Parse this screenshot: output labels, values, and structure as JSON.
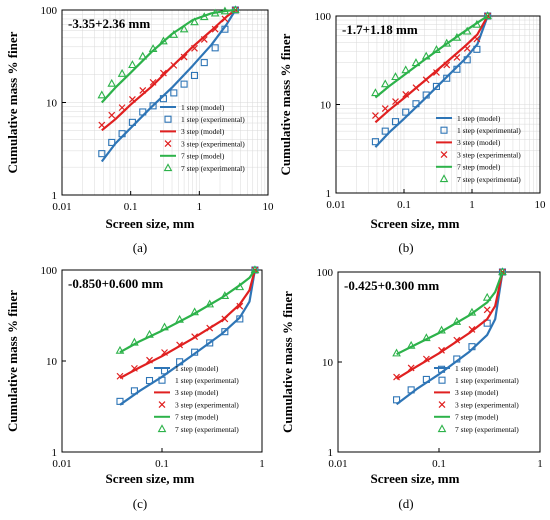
{
  "figure": {
    "panel_labels": [
      "(a)",
      "(b)",
      "(c)",
      "(d)"
    ],
    "colors": {
      "step1": "#2e75b6",
      "step3": "#e02020",
      "step7": "#2db24a",
      "axis": "#000000",
      "grid": "#d9d9d9"
    }
  },
  "chart_data": [
    {
      "type": "line",
      "title": "-3.35+2.36 mm",
      "xlabel": "Screen size, mm",
      "ylabel": "Cumulative mass % finer",
      "xscale": "log",
      "yscale": "log",
      "xlim": [
        0.01,
        10
      ],
      "ylim": [
        1,
        100
      ],
      "xticks": [
        "0.01",
        "0.1",
        "1",
        "10"
      ],
      "yticks": [
        "1",
        "10",
        "100"
      ],
      "grid": true,
      "legend": [
        "1 step (model)",
        "1 step (experimental)",
        "3 step (model)",
        "3 step (experimental)",
        "7 step (model)",
        "7 step (experimental)"
      ],
      "series": [
        {
          "name": "1 step (model)",
          "kind": "line",
          "color": "#2e75b6",
          "x": [
            0.038,
            0.06,
            0.1,
            0.2,
            0.4,
            0.8,
            1.5,
            2.5,
            3.35
          ],
          "y": [
            2.3,
            3.6,
            5.3,
            8.9,
            14.5,
            25,
            42,
            70,
            100
          ]
        },
        {
          "name": "1 step (experimental)",
          "kind": "marker",
          "marker": "square",
          "color": "#2e75b6",
          "x": [
            0.038,
            0.053,
            0.075,
            0.106,
            0.15,
            0.212,
            0.3,
            0.425,
            0.6,
            0.85,
            1.18,
            1.7,
            2.36,
            3.35
          ],
          "y": [
            2.8,
            3.7,
            4.6,
            6.1,
            7.9,
            9.2,
            11,
            12.7,
            15.8,
            19.6,
            27,
            39,
            62,
            100
          ]
        },
        {
          "name": "3 step (model)",
          "kind": "line",
          "color": "#e02020",
          "x": [
            0.038,
            0.06,
            0.1,
            0.2,
            0.4,
            0.8,
            1.5,
            2.5,
            3.35
          ],
          "y": [
            5,
            6.6,
            9.5,
            14.8,
            24.5,
            40,
            60,
            85,
            100
          ]
        },
        {
          "name": "3 step (experimental)",
          "kind": "marker",
          "marker": "x",
          "color": "#e02020",
          "x": [
            0.038,
            0.053,
            0.075,
            0.106,
            0.15,
            0.212,
            0.3,
            0.425,
            0.6,
            0.85,
            1.18,
            1.7,
            2.36,
            3.35
          ],
          "y": [
            5.7,
            7.3,
            8.8,
            10.8,
            13.5,
            16.5,
            20.8,
            25.2,
            31,
            38.5,
            48,
            62,
            80,
            100
          ]
        },
        {
          "name": "7 step (model)",
          "kind": "line",
          "color": "#2db24a",
          "x": [
            0.038,
            0.06,
            0.1,
            0.2,
            0.4,
            0.8,
            1.5,
            2.5,
            3.35
          ],
          "y": [
            10,
            14.5,
            21,
            35,
            55,
            78,
            92,
            98,
            100
          ]
        },
        {
          "name": "7 step (experimental)",
          "kind": "marker",
          "marker": "triangle",
          "color": "#2db24a",
          "x": [
            0.038,
            0.053,
            0.075,
            0.106,
            0.15,
            0.212,
            0.3,
            0.425,
            0.6,
            0.85,
            1.18,
            1.7,
            2.36,
            3.35
          ],
          "y": [
            12,
            16,
            20.5,
            25.5,
            31.5,
            38,
            46,
            54,
            62,
            74,
            84,
            92,
            97,
            100
          ]
        }
      ]
    },
    {
      "type": "line",
      "title": "-1.7+1.18 mm",
      "xlabel": "Screen size, mm",
      "ylabel": "Cumulative mass % finer",
      "xscale": "log",
      "yscale": "log",
      "xlim": [
        0.01,
        10
      ],
      "ylim": [
        1,
        100
      ],
      "xticks": [
        "0.01",
        "0.1",
        "1",
        "10"
      ],
      "yticks": [
        "1",
        "10",
        "100"
      ],
      "grid": true,
      "legend": [
        "1 step (model)",
        "1 step (experimental)",
        "3 step (model)",
        "3 step (experimental)",
        "7 step (model)",
        "7 step (experimental)"
      ],
      "series": [
        {
          "name": "1 step (model)",
          "kind": "line",
          "color": "#2e75b6",
          "x": [
            0.038,
            0.06,
            0.1,
            0.2,
            0.4,
            0.8,
            1.2,
            1.7
          ],
          "y": [
            3.3,
            4.8,
            6.9,
            11.5,
            19.5,
            33,
            48,
            100
          ]
        },
        {
          "name": "1 step (experimental)",
          "kind": "marker",
          "marker": "square",
          "color": "#2e75b6",
          "x": [
            0.038,
            0.053,
            0.075,
            0.106,
            0.15,
            0.212,
            0.3,
            0.425,
            0.6,
            0.85,
            1.18,
            1.7
          ],
          "y": [
            3.8,
            5,
            6.4,
            8.2,
            10.2,
            12.8,
            16,
            19.8,
            25,
            32,
            42,
            100
          ]
        },
        {
          "name": "3 step (model)",
          "kind": "line",
          "color": "#e02020",
          "x": [
            0.038,
            0.06,
            0.1,
            0.2,
            0.4,
            0.8,
            1.2,
            1.7
          ],
          "y": [
            6.3,
            8.6,
            11.8,
            18.5,
            29,
            46,
            62,
            100
          ]
        },
        {
          "name": "3 step (experimental)",
          "kind": "marker",
          "marker": "x",
          "color": "#e02020",
          "x": [
            0.038,
            0.053,
            0.075,
            0.106,
            0.15,
            0.212,
            0.3,
            0.425,
            0.6,
            0.85,
            1.18,
            1.7
          ],
          "y": [
            7.5,
            9,
            10.8,
            13,
            15.5,
            19,
            23,
            28,
            34,
            43,
            55,
            100
          ]
        },
        {
          "name": "7 step (model)",
          "kind": "line",
          "color": "#2db24a",
          "x": [
            0.038,
            0.06,
            0.1,
            0.2,
            0.4,
            0.8,
            1.2,
            1.7
          ],
          "y": [
            12,
            16,
            21.5,
            32,
            47,
            68,
            84,
            100
          ]
        },
        {
          "name": "7 step (experimental)",
          "kind": "marker",
          "marker": "triangle",
          "color": "#2db24a",
          "x": [
            0.038,
            0.053,
            0.075,
            0.106,
            0.15,
            0.212,
            0.3,
            0.425,
            0.6,
            0.85,
            1.18,
            1.7
          ],
          "y": [
            13.5,
            17,
            20.5,
            24.5,
            29.5,
            35,
            41.5,
            49,
            57,
            67,
            80,
            100
          ]
        }
      ]
    },
    {
      "type": "line",
      "title": "-0.850+0.600 mm",
      "xlabel": "Screen size, mm",
      "ylabel": "Cumulative mass % finer",
      "xscale": "log",
      "yscale": "log",
      "xlim": [
        0.01,
        1
      ],
      "ylim": [
        1,
        100
      ],
      "xticks": [
        "0.01",
        "0.1",
        "1"
      ],
      "yticks": [
        "1",
        "10",
        "100"
      ],
      "grid": false,
      "legend": [
        "1 step (model)",
        "1 step (experimental)",
        "3 step (model)",
        "3 step (experimental)",
        "7 step (model)",
        "7 step (experimental)"
      ],
      "series": [
        {
          "name": "1 step (model)",
          "kind": "line",
          "color": "#2e75b6",
          "x": [
            0.038,
            0.06,
            0.1,
            0.2,
            0.4,
            0.6,
            0.75,
            0.85
          ],
          "y": [
            3.3,
            4.7,
            6.7,
            11.5,
            20,
            30,
            45,
            100
          ]
        },
        {
          "name": "1 step (experimental)",
          "kind": "marker",
          "marker": "square",
          "color": "#2e75b6",
          "x": [
            0.038,
            0.053,
            0.075,
            0.106,
            0.15,
            0.212,
            0.3,
            0.425,
            0.6,
            0.85
          ],
          "y": [
            3.6,
            4.7,
            6.1,
            7.8,
            9.8,
            12.5,
            15.8,
            21,
            29,
            100
          ]
        },
        {
          "name": "3 step (model)",
          "kind": "line",
          "color": "#e02020",
          "x": [
            0.038,
            0.06,
            0.1,
            0.2,
            0.4,
            0.6,
            0.75,
            0.85
          ],
          "y": [
            6.5,
            8.5,
            11.3,
            17.5,
            28,
            42,
            60,
            100
          ]
        },
        {
          "name": "3 step (experimental)",
          "kind": "marker",
          "marker": "x",
          "color": "#e02020",
          "x": [
            0.038,
            0.053,
            0.075,
            0.106,
            0.15,
            0.212,
            0.3,
            0.425,
            0.6,
            0.85
          ],
          "y": [
            6.8,
            8.3,
            10.2,
            12.4,
            15,
            18.5,
            23,
            29,
            40,
            100
          ]
        },
        {
          "name": "7 step (model)",
          "kind": "line",
          "color": "#2db24a",
          "x": [
            0.038,
            0.06,
            0.1,
            0.2,
            0.4,
            0.6,
            0.75,
            0.85
          ],
          "y": [
            12.5,
            16.5,
            21.5,
            32,
            50,
            68,
            82,
            100
          ]
        },
        {
          "name": "7 step (experimental)",
          "kind": "marker",
          "marker": "triangle",
          "color": "#2db24a",
          "x": [
            0.038,
            0.053,
            0.075,
            0.106,
            0.15,
            0.212,
            0.3,
            0.425,
            0.6,
            0.85
          ],
          "y": [
            13,
            16,
            19.5,
            23.5,
            28.5,
            34.5,
            42,
            52,
            65,
            100
          ]
        }
      ]
    },
    {
      "type": "line",
      "title": "-0.425+0.300 mm",
      "xlabel": "Screen size, mm",
      "ylabel": "Cumulative mass % finer",
      "xscale": "log",
      "yscale": "log",
      "xlim": [
        0.01,
        1
      ],
      "ylim": [
        1,
        100
      ],
      "xticks": [
        "0.01",
        "0.1",
        "1"
      ],
      "yticks": [
        "1",
        "10",
        "100"
      ],
      "grid": false,
      "legend": [
        "1 step (model)",
        "1 step (experimental)",
        "3 step (model)",
        "3 step (experimental)",
        "7 step (model)",
        "7 step (experimental)"
      ],
      "series": [
        {
          "name": "1 step (model)",
          "kind": "line",
          "color": "#2e75b6",
          "x": [
            0.038,
            0.06,
            0.1,
            0.2,
            0.3,
            0.36,
            0.425
          ],
          "y": [
            3.4,
            5,
            7.3,
            13,
            20,
            30,
            100
          ]
        },
        {
          "name": "1 step (experimental)",
          "kind": "marker",
          "marker": "square",
          "color": "#2e75b6",
          "x": [
            0.038,
            0.053,
            0.075,
            0.106,
            0.15,
            0.212,
            0.3,
            0.425
          ],
          "y": [
            3.8,
            4.9,
            6.4,
            8.3,
            10.8,
            14.8,
            27,
            100
          ]
        },
        {
          "name": "3 step (model)",
          "kind": "line",
          "color": "#e02020",
          "x": [
            0.038,
            0.06,
            0.1,
            0.2,
            0.3,
            0.36,
            0.425
          ],
          "y": [
            6.5,
            8.9,
            12.5,
            21,
            30,
            42,
            100
          ]
        },
        {
          "name": "3 step (experimental)",
          "kind": "marker",
          "marker": "x",
          "color": "#e02020",
          "x": [
            0.038,
            0.053,
            0.075,
            0.106,
            0.15,
            0.212,
            0.3,
            0.425
          ],
          "y": [
            6.8,
            8.6,
            10.8,
            13.5,
            17.5,
            23,
            38,
            100
          ]
        },
        {
          "name": "7 step (model)",
          "kind": "line",
          "color": "#2db24a",
          "x": [
            0.038,
            0.06,
            0.1,
            0.2,
            0.3,
            0.36,
            0.425
          ],
          "y": [
            12.2,
            15.8,
            21,
            33,
            46,
            60,
            100
          ]
        },
        {
          "name": "7 step (experimental)",
          "kind": "marker",
          "marker": "triangle",
          "color": "#2db24a",
          "x": [
            0.038,
            0.053,
            0.075,
            0.106,
            0.15,
            0.212,
            0.3,
            0.425
          ],
          "y": [
            12.5,
            15.2,
            18.5,
            22.5,
            28,
            35.5,
            52,
            100
          ]
        }
      ]
    }
  ]
}
